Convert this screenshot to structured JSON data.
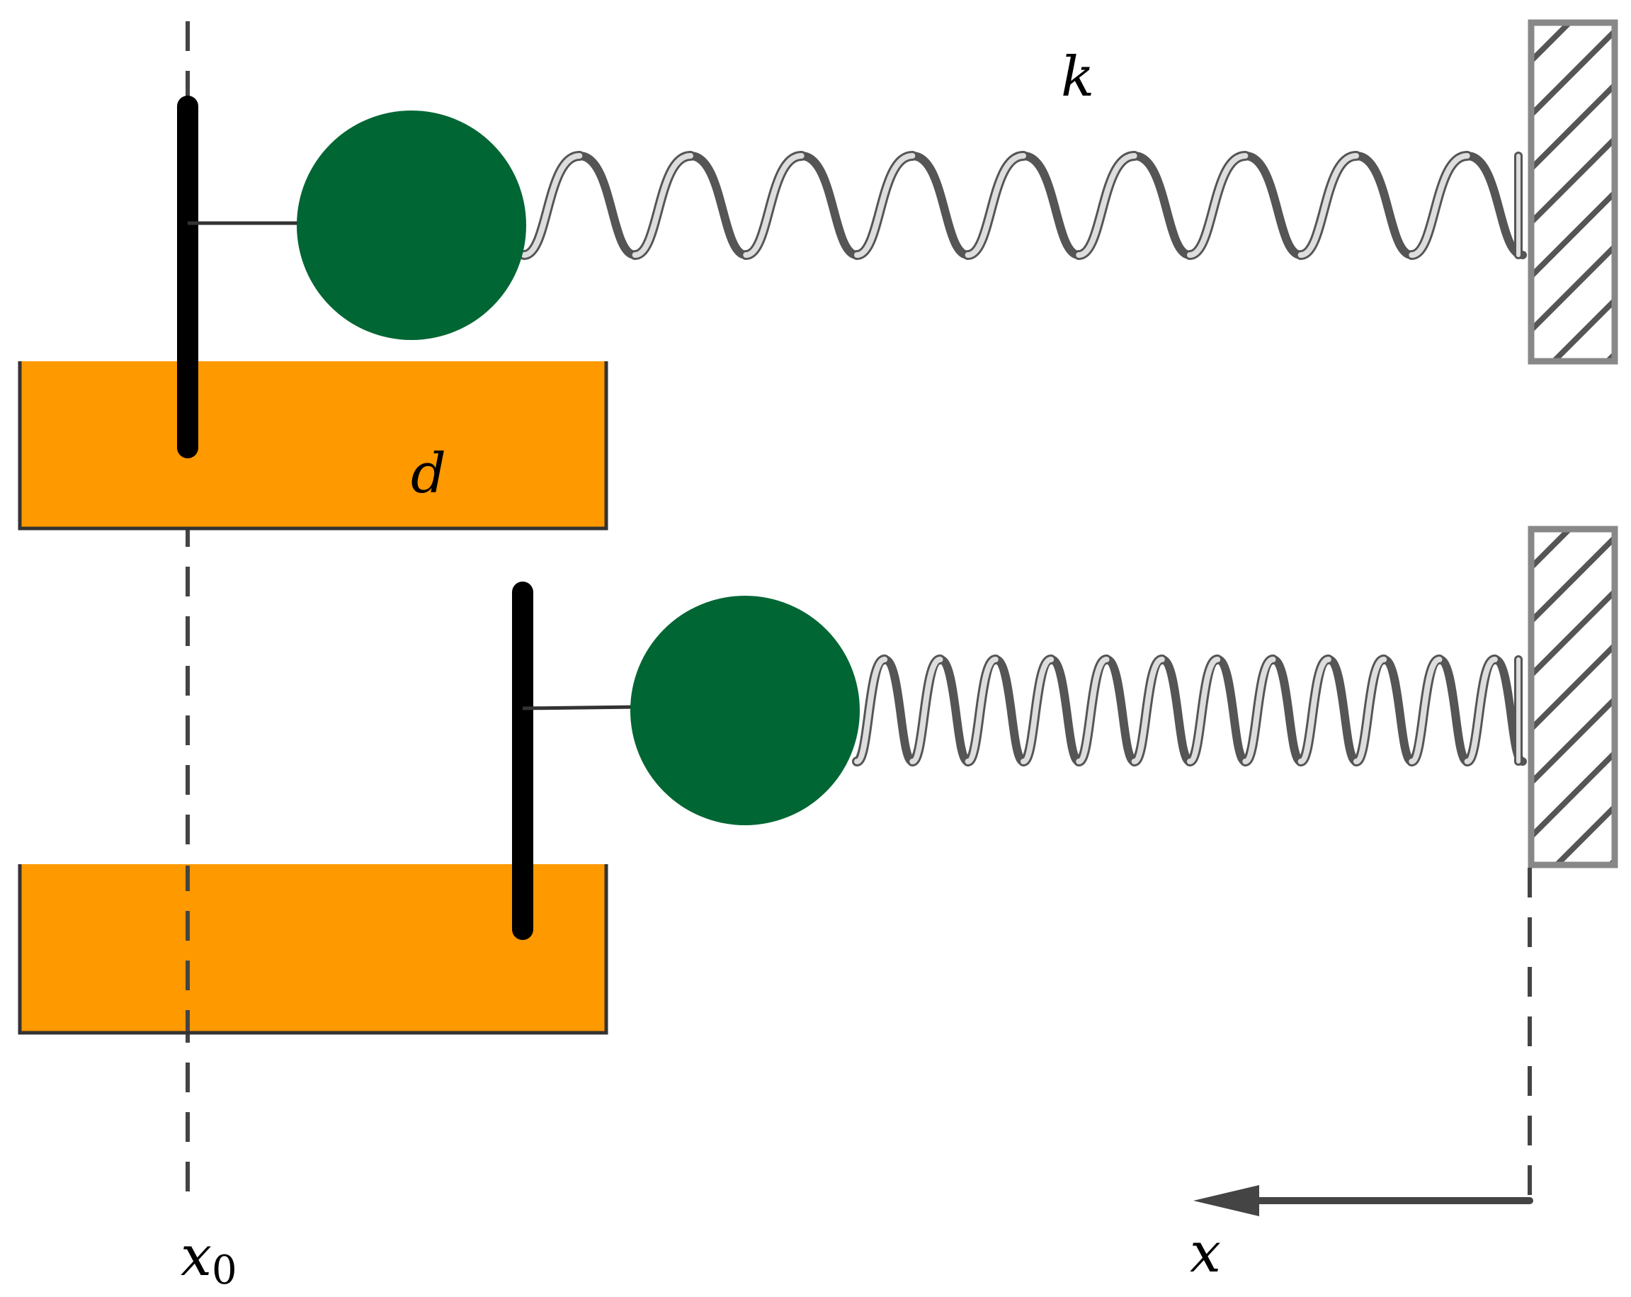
{
  "labels": {
    "spring_constant": "k",
    "damping": "d",
    "x0_main": "x",
    "x0_sub": "0",
    "x_axis": "x"
  },
  "colors": {
    "mass": "#006633",
    "damper_fluid": "#FF9900",
    "dashed_line": "#444444",
    "wall_gray": "#777777",
    "plunger": "#000000",
    "arrow": "#444444"
  },
  "icons": {
    "wall": "hatched-wall-icon",
    "arrow": "arrow-left-icon"
  }
}
